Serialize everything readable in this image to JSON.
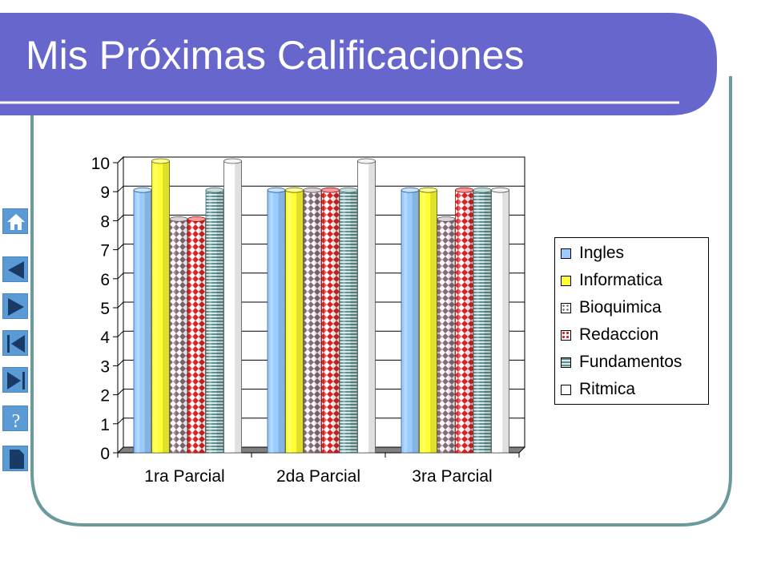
{
  "slide": {
    "title": "Mis Próximas Calificaciones"
  },
  "nav_buttons": [
    {
      "icon": "home-icon"
    },
    {
      "icon": "previous-icon"
    },
    {
      "icon": "next-icon"
    },
    {
      "icon": "first-slide-icon"
    },
    {
      "icon": "last-slide-icon"
    },
    {
      "icon": "help-icon"
    },
    {
      "icon": "document-icon"
    }
  ],
  "colors": {
    "header": "#6666CC",
    "frame": "#6B9A9A",
    "Ingles": "#99CCFF",
    "Informatica": "#FFFF33",
    "Bioquimica": "#C8C8C8",
    "Redaccion": "#FF5555",
    "Fundamentos": "#A8C8C8",
    "Ritmica": "#FFFFFF"
  },
  "chart_data": {
    "type": "bar",
    "categories": [
      "1ra Parcial",
      "2da Parcial",
      "3ra Parcial"
    ],
    "series": [
      {
        "name": "Ingles",
        "values": [
          9,
          9,
          9
        ]
      },
      {
        "name": "Informatica",
        "values": [
          10,
          9,
          9
        ]
      },
      {
        "name": "Bioquimica",
        "values": [
          8,
          9,
          8
        ]
      },
      {
        "name": "Redaccion",
        "values": [
          8,
          9,
          9
        ]
      },
      {
        "name": "Fundamentos",
        "values": [
          9,
          9,
          9
        ]
      },
      {
        "name": "Ritmica",
        "values": [
          10,
          10,
          9
        ]
      }
    ],
    "y_ticks": [
      "0",
      "1",
      "2",
      "3",
      "4",
      "5",
      "6",
      "7",
      "8",
      "9",
      "10"
    ],
    "ylim": [
      0,
      10
    ],
    "grid": true,
    "legend_position": "right",
    "style": "3d-cylinder"
  }
}
